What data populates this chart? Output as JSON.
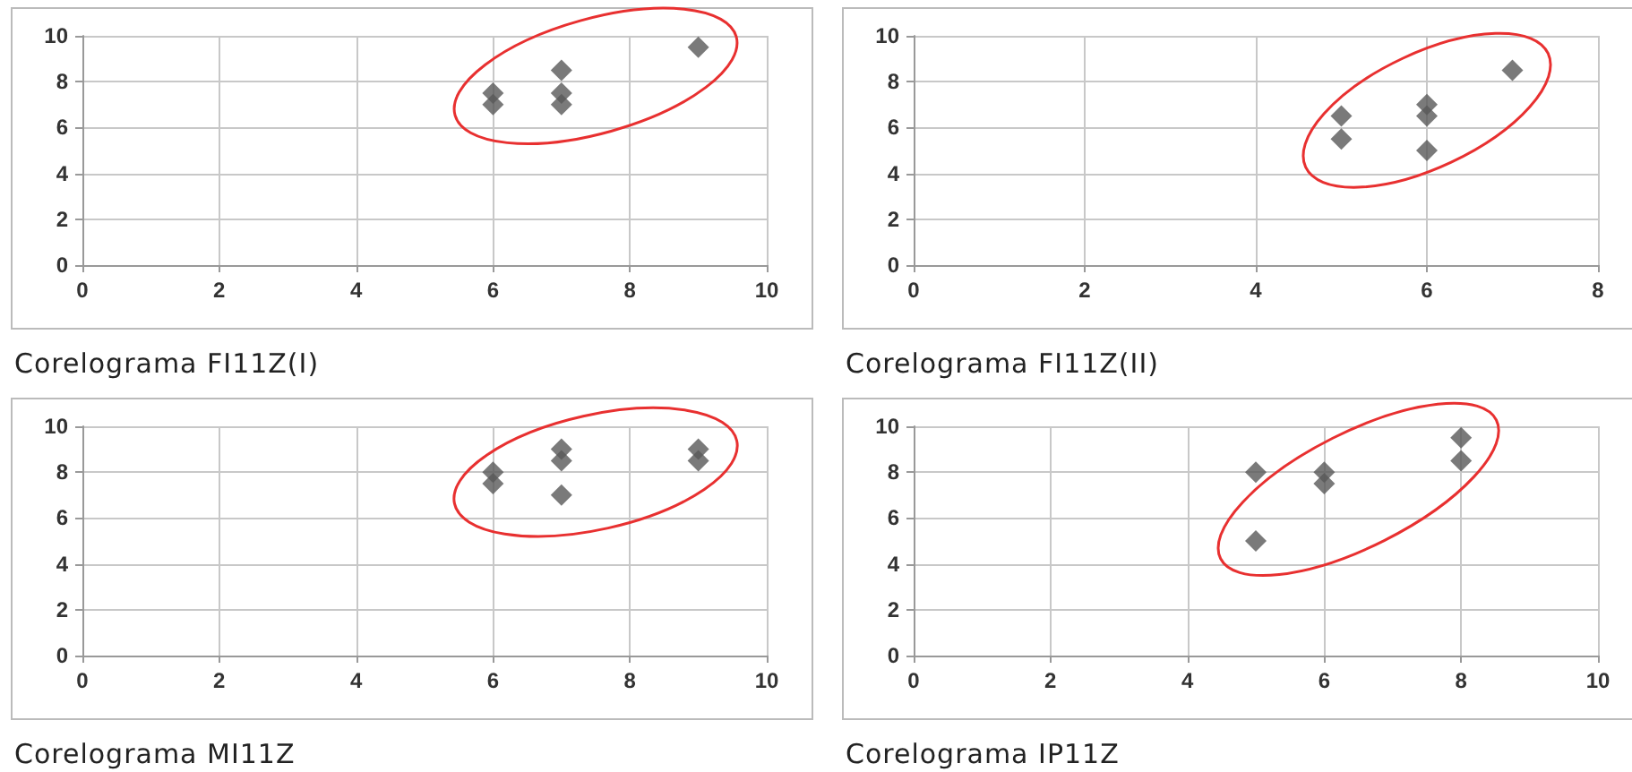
{
  "chart_data": [
    {
      "type": "scatter",
      "title": "Corelograma FI11Z(I)",
      "marker": "diamond",
      "grid": true,
      "xlim": [
        0,
        10
      ],
      "xticks": [
        0,
        2,
        4,
        6,
        8,
        10
      ],
      "ylim": [
        0,
        10
      ],
      "yticks": [
        0,
        2,
        4,
        6,
        8,
        10
      ],
      "series": [
        {
          "color": "#595959",
          "x": [
            6,
            6,
            7,
            7,
            7,
            9
          ],
          "values": [
            7,
            7.5,
            7,
            7.5,
            8.5,
            9.5
          ]
        }
      ]
    },
    {
      "type": "scatter",
      "title": "Corelograma FI11Z(II)",
      "marker": "diamond",
      "grid": true,
      "xlim": [
        0,
        8
      ],
      "xticks": [
        0,
        2,
        4,
        6,
        8
      ],
      "ylim": [
        0,
        10
      ],
      "yticks": [
        0,
        2,
        4,
        6,
        8,
        10
      ],
      "series": [
        {
          "color": "#595959",
          "x": [
            5,
            5,
            6,
            6,
            6,
            7
          ],
          "values": [
            5.5,
            6.5,
            5,
            6.5,
            7,
            8.5
          ]
        }
      ]
    },
    {
      "type": "scatter",
      "title": "Corelograma MI11Z",
      "marker": "diamond",
      "grid": true,
      "xlim": [
        0,
        10
      ],
      "xticks": [
        0,
        2,
        4,
        6,
        8,
        10
      ],
      "ylim": [
        0,
        10
      ],
      "yticks": [
        0,
        2,
        4,
        6,
        8,
        10
      ],
      "series": [
        {
          "color": "#595959",
          "x": [
            6,
            6,
            7,
            7,
            7,
            9,
            9
          ],
          "values": [
            7.5,
            8,
            7,
            8.5,
            9,
            8.5,
            9
          ]
        }
      ]
    },
    {
      "type": "scatter",
      "title": "Corelograma IP11Z",
      "marker": "diamond",
      "grid": true,
      "xlim": [
        0,
        10
      ],
      "xticks": [
        0,
        2,
        4,
        6,
        8,
        10
      ],
      "ylim": [
        0,
        10
      ],
      "yticks": [
        0,
        2,
        4,
        6,
        8,
        10
      ],
      "series": [
        {
          "color": "#595959",
          "x": [
            5,
            5,
            6,
            6,
            8,
            8
          ],
          "values": [
            5,
            8,
            7.5,
            8,
            8.5,
            9.5
          ]
        }
      ]
    }
  ]
}
